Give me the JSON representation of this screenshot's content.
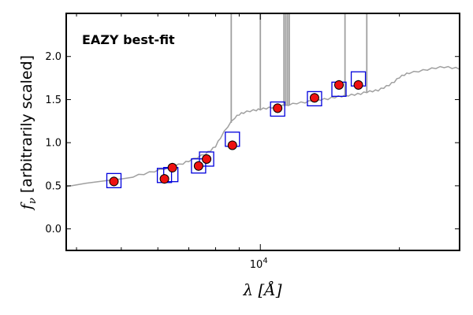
{
  "chart_data": {
    "type": "scatter",
    "annotation": "EAZY best-fit",
    "xlabel": "λ [Å]",
    "ylabel": "f",
    "ylabel_sub": "ν",
    "ylabel_rest": " [arbitrarily scaled]",
    "xscale": "log",
    "xlim": [
      3800,
      27000
    ],
    "ylim": [
      -0.25,
      2.5
    ],
    "yticks": [
      0.0,
      0.5,
      1.0,
      1.5,
      2.0
    ],
    "ytick_labels": [
      "0.0",
      "0.5",
      "1.0",
      "1.5",
      "2.0"
    ],
    "xtick_major": 10000,
    "xtick_major_base": "10",
    "xtick_major_exp": "4",
    "grid": false,
    "colors": {
      "annotation": "#ff0000",
      "model": "#a0a0a0",
      "model_photometry_edge": "#0000dd",
      "observed_fill": "#ee1111",
      "observed_edge": "#000000"
    },
    "series": [
      {
        "kind": "line",
        "x": [
          3800,
          4000,
          4200,
          4500,
          4800,
          5000,
          5300,
          5600,
          5900,
          6200,
          6500,
          6800,
          7000,
          7300,
          7600,
          7800,
          8000,
          8200,
          8500,
          8800,
          9000,
          9200,
          9500,
          9800,
          10000,
          10300,
          10600,
          11000,
          11500,
          12000,
          12500,
          13000,
          13500,
          14000,
          14500,
          15000,
          15500,
          16000,
          16500,
          17000,
          17500,
          18000,
          18500,
          19000,
          19500,
          20000,
          20500,
          21000,
          22000,
          23000,
          24000,
          25000,
          26000,
          27000
        ],
        "y": [
          0.49,
          0.51,
          0.53,
          0.55,
          0.57,
          0.58,
          0.6,
          0.63,
          0.66,
          0.69,
          0.72,
          0.75,
          0.78,
          0.82,
          0.86,
          0.9,
          0.95,
          1.05,
          1.18,
          1.28,
          1.32,
          1.34,
          1.36,
          1.37,
          1.38,
          1.39,
          1.4,
          1.42,
          1.43,
          1.45,
          1.46,
          1.48,
          1.49,
          1.5,
          1.52,
          1.53,
          1.54,
          1.55,
          1.56,
          1.58,
          1.59,
          1.6,
          1.63,
          1.66,
          1.7,
          1.75,
          1.78,
          1.8,
          1.82,
          1.84,
          1.86,
          1.87,
          1.86,
          1.85
        ]
      },
      {
        "kind": "emission_lines",
        "x": [
          8650,
          10000,
          11250,
          11350,
          11450,
          11550,
          15250,
          17000
        ],
        "y_top": [
          2.6,
          2.6,
          2.6,
          2.6,
          2.6,
          2.6,
          2.6,
          2.6
        ]
      },
      {
        "kind": "model_photometry",
        "x": [
          4820,
          6200,
          6400,
          7350,
          7650,
          8700,
          10900,
          13100,
          14800,
          16300
        ],
        "y": [
          0.56,
          0.62,
          0.63,
          0.73,
          0.81,
          1.04,
          1.39,
          1.51,
          1.62,
          1.74
        ]
      },
      {
        "kind": "observed_photometry",
        "x": [
          4820,
          6200,
          6450,
          7350,
          7650,
          8700,
          10900,
          13100,
          14800,
          16300
        ],
        "y": [
          0.55,
          0.58,
          0.71,
          0.73,
          0.81,
          0.97,
          1.4,
          1.52,
          1.67,
          1.67
        ]
      }
    ]
  }
}
